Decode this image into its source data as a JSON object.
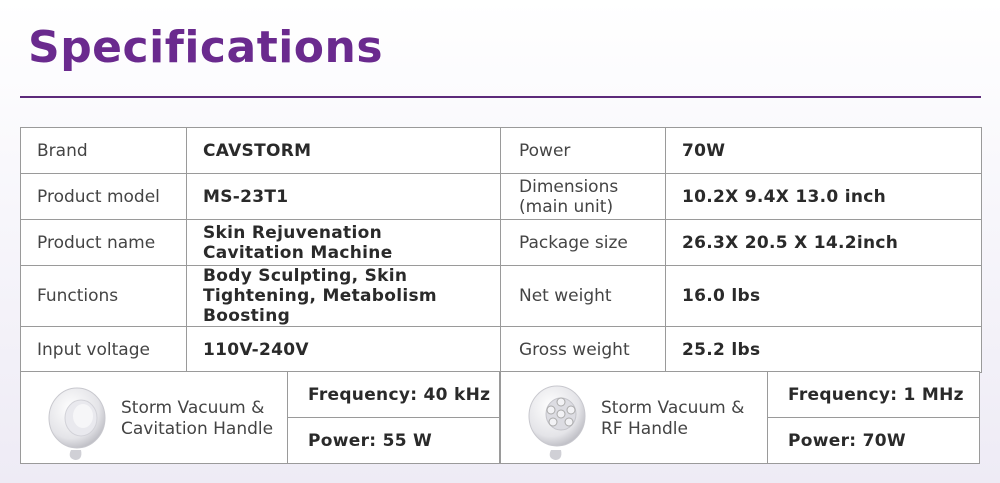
{
  "title": "Specifications",
  "specs": {
    "rows": [
      {
        "label_left": "Brand",
        "value_left": "CAVSTORM",
        "label_right": "Power",
        "value_right": "70W"
      },
      {
        "label_left": "Product model",
        "value_left": "MS-23T1",
        "label_right": "Dimensions (main unit)",
        "value_right": "10.2X 9.4X 13.0 inch"
      },
      {
        "label_left": "Product name",
        "value_left": "Skin Rejuvenation Cavitation Machine",
        "label_right": "Package size",
        "value_right": "26.3X 20.5 X 14.2inch"
      },
      {
        "label_left": "Functions",
        "value_left": "Body Sculpting, Skin Tightening, Metabolism Boosting",
        "label_right": "Net weight",
        "value_right": "16.0 lbs"
      },
      {
        "label_left": "Input voltage",
        "value_left": "110V-240V",
        "label_right": "Gross weight",
        "value_right": "25.2 lbs"
      }
    ]
  },
  "handles": [
    {
      "name": "Storm Vacuum & Cavitation Handle",
      "frequency": "Frequency: 40 kHz",
      "power": "Power: 55 W",
      "icon": "cavitation-handle-icon"
    },
    {
      "name": "Storm Vacuum & RF Handle",
      "frequency": "Frequency: 1 MHz",
      "power": "Power: 70W",
      "icon": "rf-handle-icon"
    }
  ],
  "colors": {
    "title": "#6a2a8e",
    "rule": "#5d2a7a",
    "border": "#9a9a9a"
  }
}
